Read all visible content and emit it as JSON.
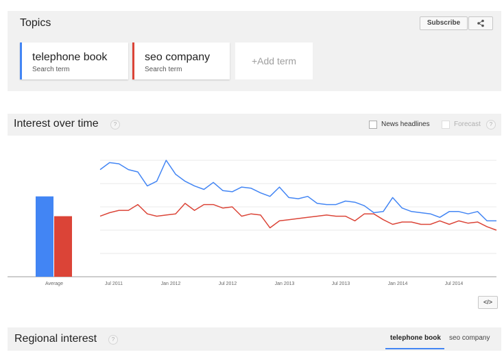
{
  "topics": {
    "title": "Topics",
    "subscribe_label": "Subscribe",
    "share_icon": "share-icon",
    "terms": [
      {
        "name": "telephone book",
        "sub": "Search term",
        "color": "#4285f4"
      },
      {
        "name": "seo company",
        "sub": "Search term",
        "color": "#db4437"
      }
    ],
    "add_term_label": "+Add term"
  },
  "interest_over_time": {
    "title": "Interest over time",
    "help_icon": "help-icon",
    "news_headlines_label": "News headlines",
    "forecast_label": "Forecast",
    "embed_label": "</>",
    "average_label": "Average"
  },
  "regional_interest": {
    "title": "Regional interest",
    "tabs": [
      "telephone book",
      "seo company"
    ],
    "active_tab": "telephone book"
  },
  "chart_data": {
    "type": "line",
    "x_tick_labels": [
      "Jul 2011",
      "Jan 2012",
      "Jul 2012",
      "Jan 2013",
      "Jul 2013",
      "Jan 2014",
      "Jul 2014"
    ],
    "ylim": [
      0,
      100
    ],
    "grid": true,
    "average_bars": {
      "category": "Average",
      "values": [
        69,
        52
      ]
    },
    "series": [
      {
        "name": "telephone book",
        "color": "#4285f4",
        "values": [
          92,
          98,
          97,
          92,
          90,
          78,
          82,
          100,
          88,
          82,
          78,
          75,
          81,
          74,
          73,
          77,
          76,
          72,
          69,
          77,
          68,
          67,
          69,
          63,
          62,
          62,
          65,
          64,
          61,
          55,
          56,
          68,
          59,
          56,
          55,
          54,
          51,
          56,
          56,
          54,
          56,
          48,
          48
        ]
      },
      {
        "name": "seo company",
        "color": "#db4437",
        "values": [
          52,
          55,
          57,
          57,
          62,
          54,
          52,
          53,
          54,
          63,
          57,
          62,
          62,
          59,
          60,
          52,
          54,
          53,
          42,
          48,
          49,
          50,
          51,
          52,
          53,
          52,
          52,
          48,
          54,
          54,
          49,
          45,
          47,
          47,
          45,
          45,
          48,
          45,
          48,
          46,
          47,
          43,
          40
        ]
      }
    ]
  }
}
